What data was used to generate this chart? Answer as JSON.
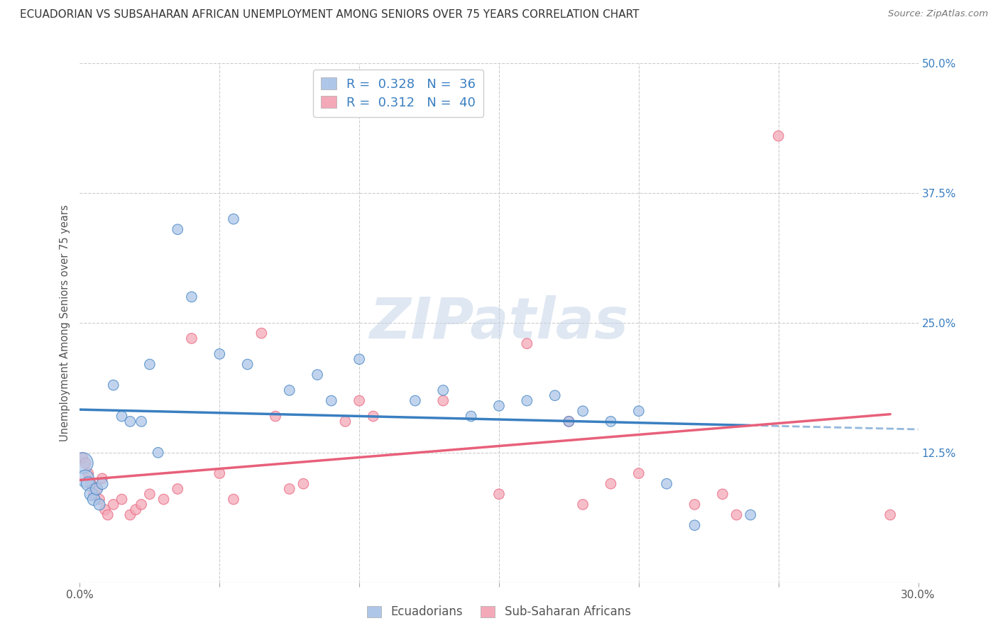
{
  "title": "ECUADORIAN VS SUBSAHARAN AFRICAN UNEMPLOYMENT AMONG SENIORS OVER 75 YEARS CORRELATION CHART",
  "source": "Source: ZipAtlas.com",
  "ylabel": "Unemployment Among Seniors over 75 years",
  "xlim": [
    0.0,
    0.3
  ],
  "ylim": [
    0.0,
    0.5
  ],
  "xticks": [
    0.0,
    0.05,
    0.1,
    0.15,
    0.2,
    0.25,
    0.3
  ],
  "yticks": [
    0.0,
    0.125,
    0.25,
    0.375,
    0.5
  ],
  "background_color": "#ffffff",
  "grid_color": "#cccccc",
  "ecuadorian_color": "#aec6e8",
  "subsaharan_color": "#f4a9b8",
  "ecuadorian_line_color": "#3a7fc1",
  "subsaharan_line_color": "#e8607a",
  "watermark_color": "#d0dce8",
  "R_ecu": 0.328,
  "N_ecu": 36,
  "R_sub": 0.312,
  "N_sub": 40,
  "ecu_x": [
    0.001,
    0.002,
    0.003,
    0.004,
    0.005,
    0.006,
    0.007,
    0.008,
    0.012,
    0.015,
    0.018,
    0.022,
    0.025,
    0.028,
    0.035,
    0.04,
    0.05,
    0.055,
    0.06,
    0.075,
    0.085,
    0.09,
    0.1,
    0.12,
    0.13,
    0.14,
    0.15,
    0.16,
    0.17,
    0.175,
    0.18,
    0.19,
    0.2,
    0.21,
    0.22,
    0.24
  ],
  "ecu_y": [
    0.115,
    0.1,
    0.095,
    0.085,
    0.08,
    0.09,
    0.075,
    0.095,
    0.19,
    0.16,
    0.155,
    0.155,
    0.21,
    0.125,
    0.34,
    0.275,
    0.22,
    0.35,
    0.21,
    0.185,
    0.2,
    0.175,
    0.215,
    0.175,
    0.185,
    0.16,
    0.17,
    0.175,
    0.18,
    0.155,
    0.165,
    0.155,
    0.165,
    0.095,
    0.055,
    0.065
  ],
  "ecu_sizes": [
    450,
    300,
    200,
    170,
    160,
    150,
    130,
    130,
    110,
    110,
    110,
    110,
    110,
    110,
    110,
    110,
    110,
    110,
    110,
    110,
    110,
    110,
    110,
    110,
    110,
    110,
    110,
    110,
    110,
    110,
    110,
    110,
    110,
    110,
    110,
    110
  ],
  "sub_x": [
    0.001,
    0.002,
    0.003,
    0.004,
    0.005,
    0.006,
    0.007,
    0.008,
    0.009,
    0.01,
    0.012,
    0.015,
    0.018,
    0.02,
    0.022,
    0.025,
    0.03,
    0.035,
    0.04,
    0.05,
    0.055,
    0.065,
    0.07,
    0.075,
    0.08,
    0.095,
    0.1,
    0.105,
    0.13,
    0.15,
    0.16,
    0.175,
    0.18,
    0.19,
    0.2,
    0.22,
    0.23,
    0.235,
    0.25,
    0.29
  ],
  "sub_y": [
    0.12,
    0.115,
    0.105,
    0.095,
    0.085,
    0.09,
    0.08,
    0.1,
    0.07,
    0.065,
    0.075,
    0.08,
    0.065,
    0.07,
    0.075,
    0.085,
    0.08,
    0.09,
    0.235,
    0.105,
    0.08,
    0.24,
    0.16,
    0.09,
    0.095,
    0.155,
    0.175,
    0.16,
    0.175,
    0.085,
    0.23,
    0.155,
    0.075,
    0.095,
    0.105,
    0.075,
    0.085,
    0.065,
    0.43,
    0.065
  ],
  "sub_sizes": [
    110,
    110,
    110,
    110,
    110,
    110,
    110,
    110,
    110,
    110,
    110,
    110,
    110,
    110,
    110,
    110,
    110,
    110,
    110,
    110,
    110,
    110,
    110,
    110,
    110,
    110,
    110,
    110,
    110,
    110,
    110,
    110,
    110,
    110,
    110,
    110,
    110,
    110,
    110,
    110
  ]
}
